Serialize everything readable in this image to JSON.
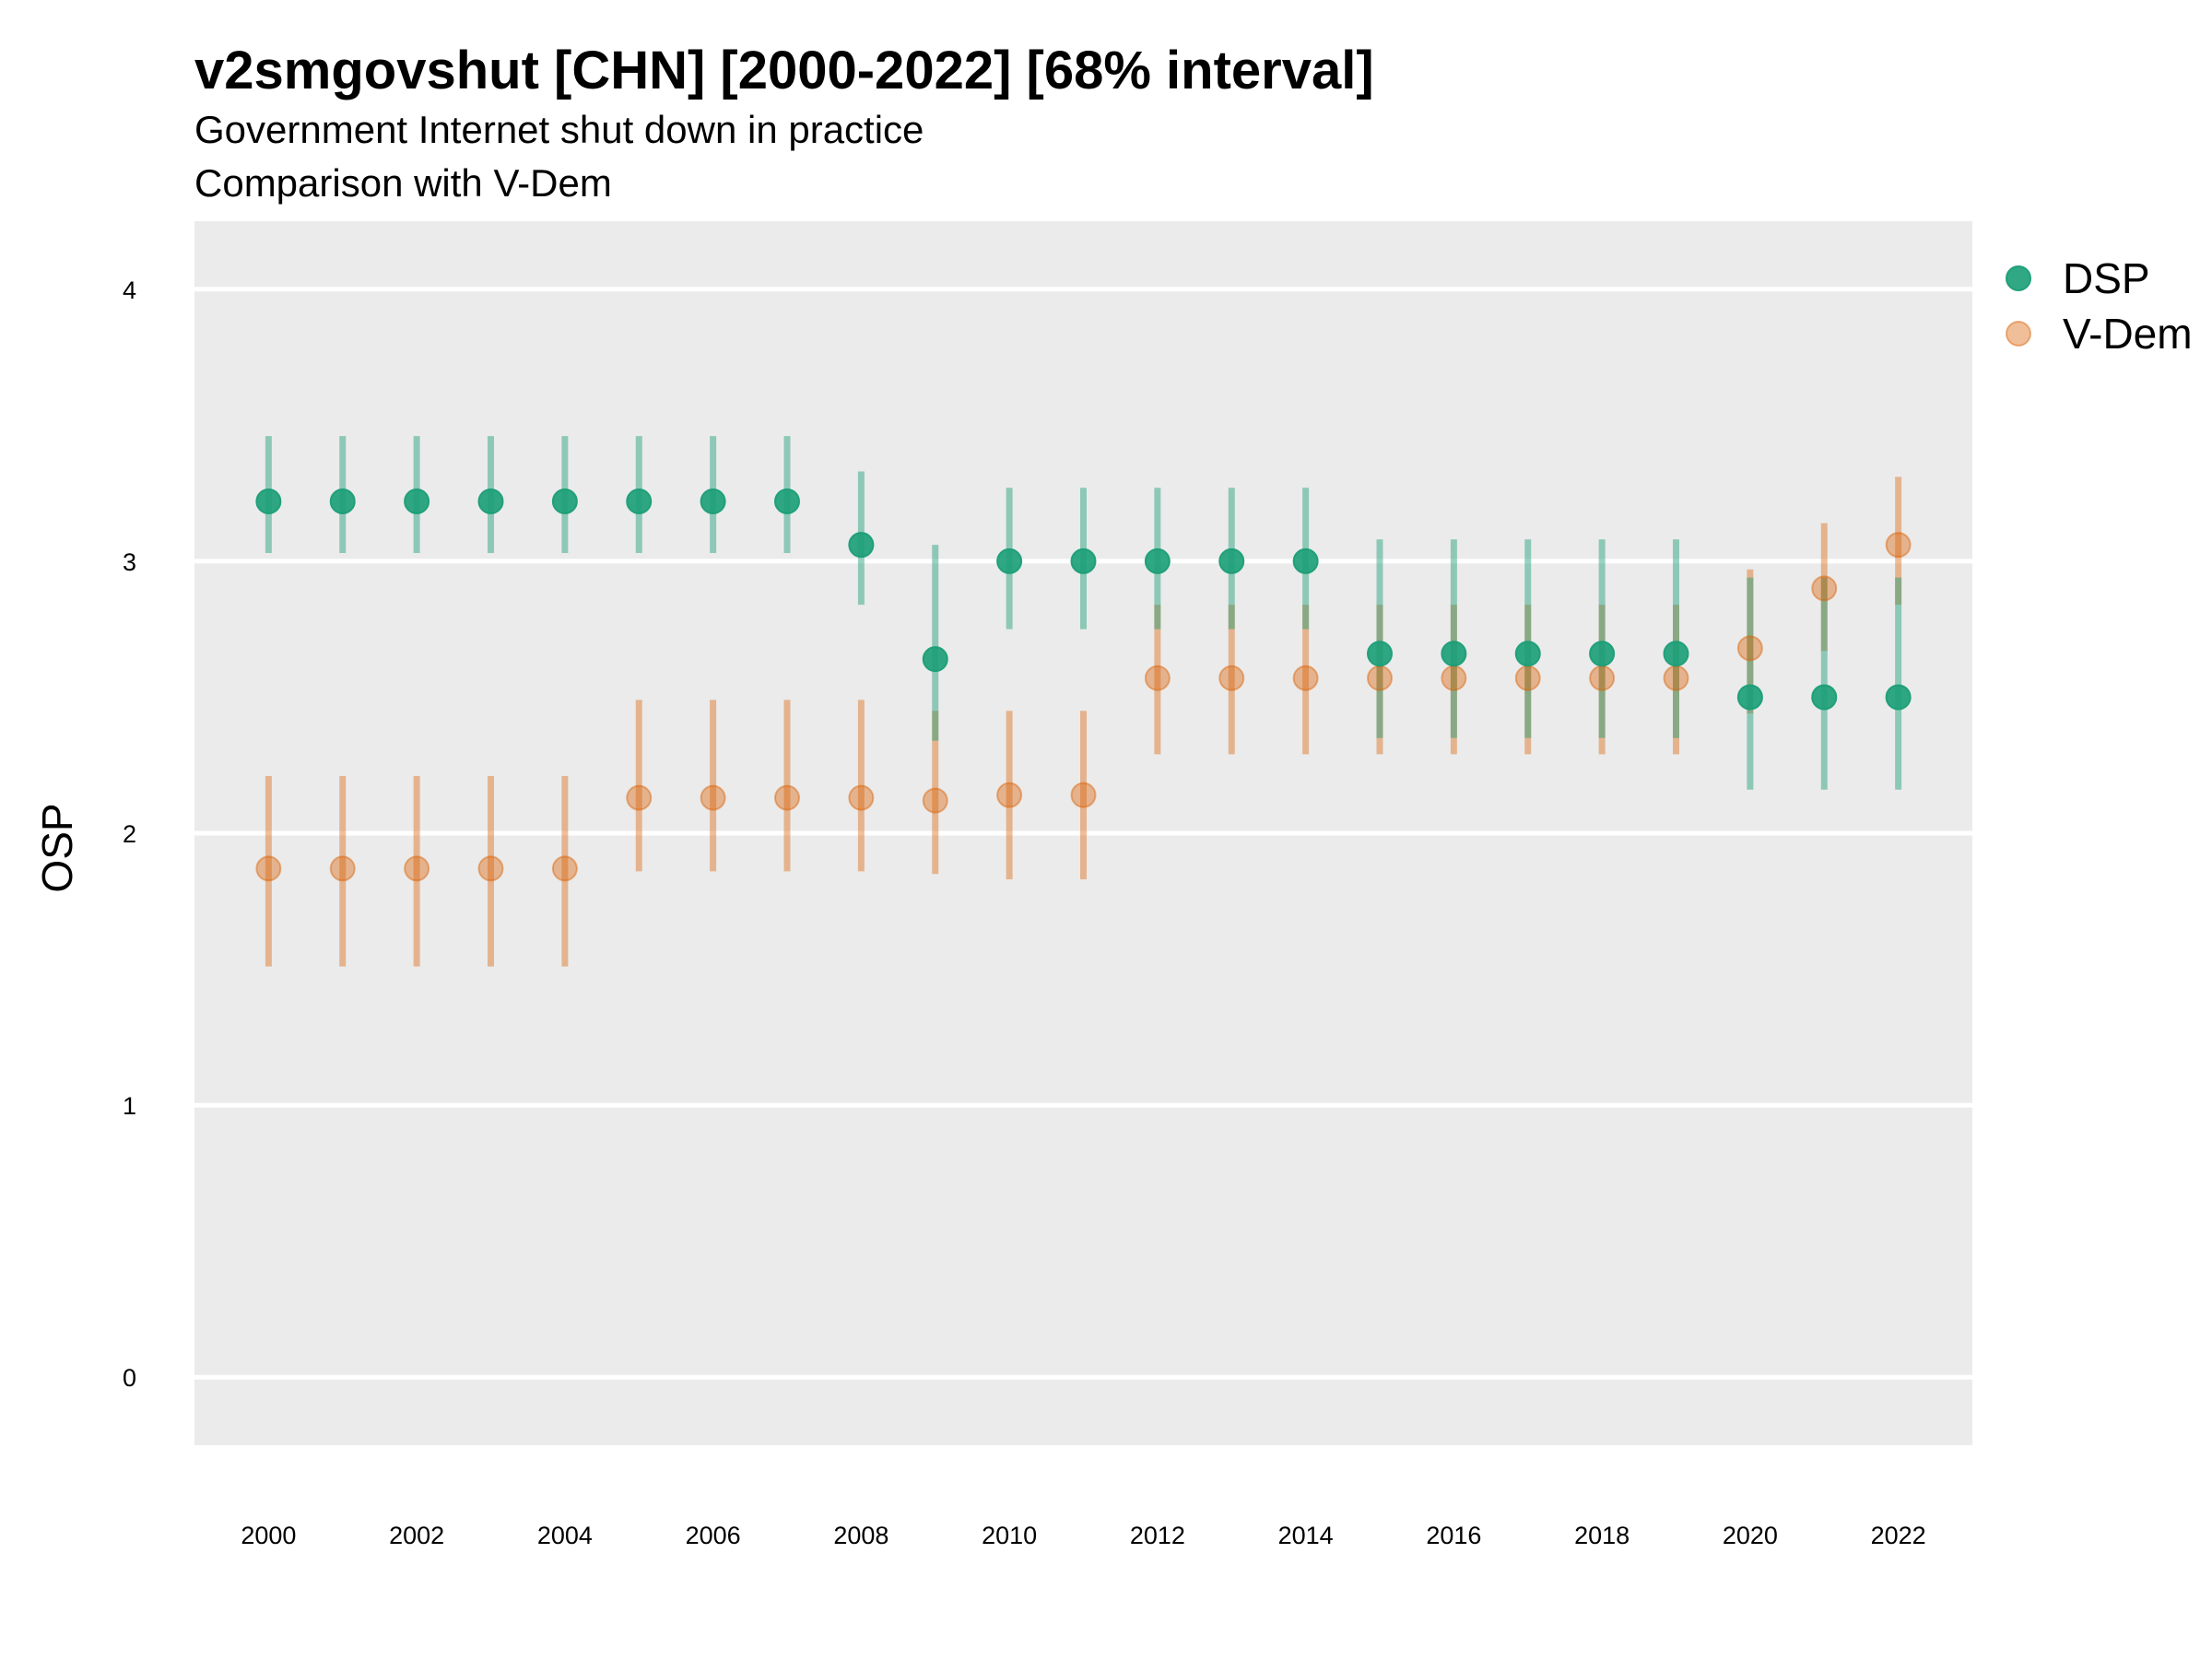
{
  "chart_data": {
    "type": "scatter",
    "title": "v2smgovshut [CHN] [2000-2022] [68% interval]",
    "subtitle_line1": "Government Internet shut down in practice",
    "subtitle_line2": "Comparison with V-Dem",
    "ylabel": "OSP",
    "xlabel": "",
    "ylim": [
      -0.25,
      4.25
    ],
    "xlim": [
      1999,
      2023
    ],
    "y_ticks": [
      0,
      1,
      2,
      3,
      4
    ],
    "x_ticks": [
      2000,
      2002,
      2004,
      2006,
      2008,
      2010,
      2012,
      2014,
      2016,
      2018,
      2020,
      2022
    ],
    "grid": "horizontal",
    "legend_position": "right",
    "series": [
      {
        "name": "DSP",
        "color": "#1b9e77",
        "x": [
          2000,
          2001,
          2002,
          2003,
          2004,
          2005,
          2006,
          2007,
          2008,
          2009,
          2010,
          2011,
          2012,
          2013,
          2014,
          2015,
          2016,
          2017,
          2018,
          2019,
          2020,
          2021,
          2022
        ],
        "y": [
          3.22,
          3.22,
          3.22,
          3.22,
          3.22,
          3.22,
          3.22,
          3.22,
          3.06,
          2.64,
          3.0,
          3.0,
          3.0,
          3.0,
          3.0,
          2.66,
          2.66,
          2.66,
          2.66,
          2.66,
          2.5,
          2.5,
          2.5
        ],
        "lower": [
          3.03,
          3.03,
          3.03,
          3.03,
          3.03,
          3.03,
          3.03,
          3.03,
          2.84,
          2.34,
          2.75,
          2.75,
          2.75,
          2.75,
          2.75,
          2.35,
          2.35,
          2.35,
          2.35,
          2.35,
          2.16,
          2.16,
          2.16
        ],
        "upper": [
          3.46,
          3.46,
          3.46,
          3.46,
          3.46,
          3.46,
          3.46,
          3.46,
          3.33,
          3.06,
          3.27,
          3.27,
          3.27,
          3.27,
          3.27,
          3.08,
          3.08,
          3.08,
          3.08,
          3.08,
          2.94,
          2.94,
          2.94
        ]
      },
      {
        "name": "V-Dem",
        "color": "#d95f02",
        "x": [
          2000,
          2001,
          2002,
          2003,
          2004,
          2005,
          2006,
          2007,
          2008,
          2009,
          2010,
          2011,
          2012,
          2013,
          2014,
          2015,
          2016,
          2017,
          2018,
          2019,
          2020,
          2021,
          2022
        ],
        "y": [
          1.87,
          1.87,
          1.87,
          1.87,
          1.87,
          2.13,
          2.13,
          2.13,
          2.13,
          2.12,
          2.14,
          2.14,
          2.57,
          2.57,
          2.57,
          2.57,
          2.57,
          2.57,
          2.57,
          2.57,
          2.68,
          2.9,
          3.06
        ],
        "lower": [
          1.51,
          1.51,
          1.51,
          1.51,
          1.51,
          1.86,
          1.86,
          1.86,
          1.86,
          1.85,
          1.83,
          1.83,
          2.29,
          2.29,
          2.29,
          2.29,
          2.29,
          2.29,
          2.29,
          2.29,
          2.44,
          2.67,
          2.84
        ],
        "upper": [
          2.21,
          2.21,
          2.21,
          2.21,
          2.21,
          2.49,
          2.49,
          2.49,
          2.49,
          2.45,
          2.45,
          2.45,
          2.84,
          2.84,
          2.84,
          2.84,
          2.84,
          2.84,
          2.84,
          2.84,
          2.97,
          3.14,
          3.31
        ]
      }
    ]
  }
}
